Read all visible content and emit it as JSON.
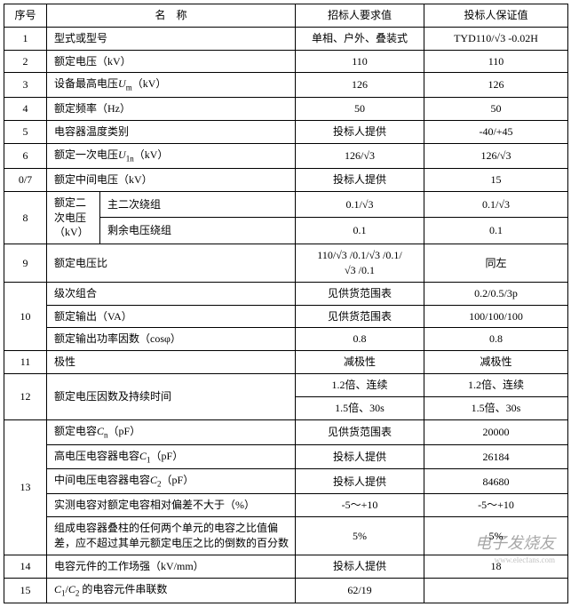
{
  "header": {
    "seq": "序号",
    "name": "名　称",
    "req": "招标人要求值",
    "bid": "投标人保证值"
  },
  "sqrt3": "√3",
  "rows": {
    "r1": {
      "seq": "1",
      "name": "型式或型号",
      "req": "单相、户外、叠装式",
      "bid_prefix": "TYD110/",
      "bid_suffix": " -0.02H"
    },
    "r2": {
      "seq": "2",
      "name": "额定电压（kV）",
      "req": "110",
      "bid": "110"
    },
    "r3": {
      "seq": "3",
      "name_prefix": "设备最高电压",
      "name_sym": "U",
      "name_sub": "m",
      "name_unit": "（kV）",
      "req": "126",
      "bid": "126"
    },
    "r4": {
      "seq": "4",
      "name": "额定频率（Hz）",
      "req": "50",
      "bid": "50"
    },
    "r5": {
      "seq": "5",
      "name": "电容器温度类别",
      "req": "投标人提供",
      "bid": "-40/+45"
    },
    "r6": {
      "seq": "6",
      "name_prefix": "额定一次电压",
      "name_sym": "U",
      "name_sub": "1n",
      "name_unit": "（kV）",
      "req_prefix": "126/",
      "bid_prefix": "126/"
    },
    "r7": {
      "seq": "0/7",
      "name": "额定中间电压（kV）",
      "req": "投标人提供",
      "bid": "15"
    },
    "r8": {
      "seq": "8",
      "name_group": "额定二次电压（kV）",
      "sub1_name": "主二次绕组",
      "sub1_req_prefix": "0.1/",
      "sub1_bid_prefix": "0.1/",
      "sub2_name": "剩余电压绕组",
      "sub2_req": "0.1",
      "sub2_bid": "0.1"
    },
    "r9": {
      "seq": "9",
      "name": "额定电压比",
      "req_l1a": "110/",
      "req_l1b": " /0.1/",
      "req_l1c": " /0.1/",
      "req_l2a": "",
      "req_l2b": " /0.1",
      "bid": "同左"
    },
    "r10": {
      "seq": "10",
      "a_name": "级次组合",
      "a_req": "见供货范围表",
      "a_bid": "0.2/0.5/3p",
      "b_name": "额定输出（VA）",
      "b_req": "见供货范围表",
      "b_bid": "100/100/100",
      "c_name": "额定输出功率因数（cosφ）",
      "c_req": "0.8",
      "c_bid": "0.8"
    },
    "r11": {
      "seq": "11",
      "name": "极性",
      "req": "减极性",
      "bid": "减极性"
    },
    "r12": {
      "seq": "12",
      "name": "额定电压因数及持续时间",
      "a_req": "1.2倍、连续",
      "a_bid": "1.2倍、连续",
      "b_req": "1.5倍、30s",
      "b_bid": "1.5倍、30s"
    },
    "r13": {
      "seq": "13",
      "a_name_prefix": "额定电容",
      "a_sym": "C",
      "a_sub": "n",
      "a_unit": "（pF）",
      "a_req": "见供货范围表",
      "a_bid": "20000",
      "b_name_prefix": "高电压电容器电容",
      "b_sym": "C",
      "b_sub": "1",
      "b_unit": "（pF）",
      "b_req": "投标人提供",
      "b_bid": "26184",
      "c_name_prefix": "中间电压电容器电容",
      "c_sym": "C",
      "c_sub": "2",
      "c_unit": "（pF）",
      "c_req": "投标人提供",
      "c_bid": "84680",
      "d_name": "实测电容对额定电容相对偏差不大于（%）",
      "d_req": "-5～+10",
      "d_bid": "-5～+10",
      "e_name": "组成电容器叠柱的任何两个单元的电容之比值偏差，应不超过其单元额定电压之比的倒数的百分数",
      "e_req": "5%",
      "e_bid": "5%"
    },
    "r14": {
      "seq": "14",
      "name": "电容元件的工作场强（kV/mm）",
      "req": "投标人提供",
      "bid": "18"
    },
    "r15": {
      "seq": "15",
      "name_sym1": "C",
      "name_sub1": "1",
      "name_slash": "/",
      "name_sym2": "C",
      "name_sub2": "2",
      "name_tail": " 的电容元件串联数",
      "req": "62/19",
      "bid": ""
    }
  },
  "watermark_main": "电子发烧友",
  "watermark_sub": "www.elecfans.com"
}
